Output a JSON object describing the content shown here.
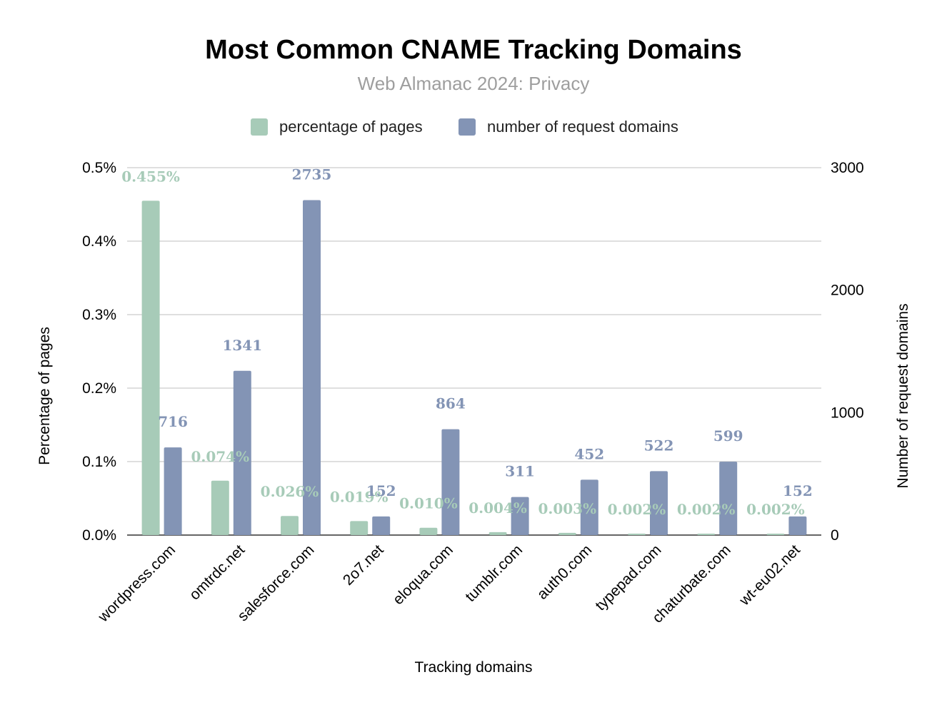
{
  "chart_data": {
    "type": "bar",
    "title": "Most Common CNAME Tracking Domains",
    "subtitle": "Web Almanac 2024: Privacy",
    "xlabel": "Tracking domains",
    "ylabel_left": "Percentage of pages",
    "ylabel_right": "Number of request domains",
    "categories": [
      "wordpress.com",
      "omtrdc.net",
      "salesforce.com",
      "2o7.net",
      "eloqua.com",
      "tumblr.com",
      "auth0.com",
      "typepad.com",
      "chaturbate.com",
      "wt-eu02.net"
    ],
    "series": [
      {
        "name": "percentage of pages",
        "axis": "left",
        "color": "#a7cbb8",
        "values": [
          0.455,
          0.074,
          0.026,
          0.019,
          0.01,
          0.004,
          0.003,
          0.002,
          0.002,
          0.002
        ],
        "labels": [
          "0.455%",
          "0.074%",
          "0.026%",
          "0.019%",
          "0.010%",
          "0.004%",
          "0.003%",
          "0.002%",
          "0.002%",
          "0.002%"
        ]
      },
      {
        "name": "number of request domains",
        "axis": "right",
        "color": "#8394b5",
        "values": [
          716,
          1341,
          2735,
          152,
          864,
          311,
          452,
          522,
          599,
          152
        ],
        "labels": [
          "716",
          "1341",
          "2735",
          "152",
          "864",
          "311",
          "452",
          "522",
          "599",
          "152"
        ]
      }
    ],
    "ylim_left": [
      0,
      0.5
    ],
    "ylim_right": [
      0,
      3000
    ],
    "left_ticks": [
      "0.0%",
      "0.1%",
      "0.2%",
      "0.3%",
      "0.4%",
      "0.5%"
    ],
    "right_ticks": [
      "0",
      "1000",
      "2000",
      "3000"
    ],
    "grid": true,
    "legend_position": "top-center"
  }
}
